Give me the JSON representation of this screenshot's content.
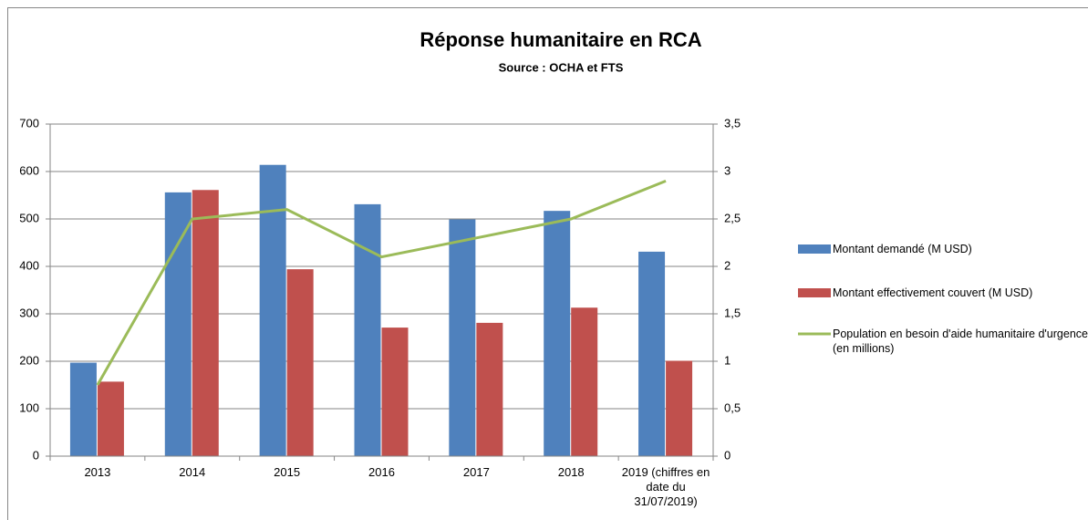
{
  "chart_data": {
    "type": "bar",
    "title": "Réponse humanitaire en RCA",
    "subtitle": "Source : OCHA et FTS",
    "categories": [
      "2013",
      "2014",
      "2015",
      "2016",
      "2017",
      "2018",
      "2019 (chiffres en date du 31/07/2019)"
    ],
    "series": [
      {
        "name": "Montant demandé (M USD)",
        "type": "bar",
        "color": "#4f81bd",
        "values": [
          197,
          556,
          614,
          531,
          499,
          517,
          431
        ]
      },
      {
        "name": "Montant effectivement couvert (M USD)",
        "type": "bar",
        "color": "#c0504d",
        "values": [
          157,
          561,
          394,
          271,
          281,
          313,
          201
        ]
      },
      {
        "name": "Population en besoin d'aide humanitaire d'urgence (en millions)",
        "type": "line",
        "axis": "y2",
        "color": "#9bbb59",
        "values": [
          0.75,
          2.5,
          2.6,
          2.1,
          2.3,
          2.5,
          2.9
        ]
      }
    ],
    "ylim": [
      0,
      700
    ],
    "yticks": [
      0,
      100,
      200,
      300,
      400,
      500,
      600,
      700
    ],
    "y2lim": [
      0,
      3.5
    ],
    "y2ticks": [
      0,
      {
        "value": 0.5,
        "label": "0,5"
      },
      1,
      {
        "value": 1.5,
        "label": "1,5"
      },
      2,
      {
        "value": 2.5,
        "label": "2,5"
      },
      3,
      {
        "value": 3.5,
        "label": "3,5"
      }
    ],
    "grid": true,
    "legend": "right"
  }
}
